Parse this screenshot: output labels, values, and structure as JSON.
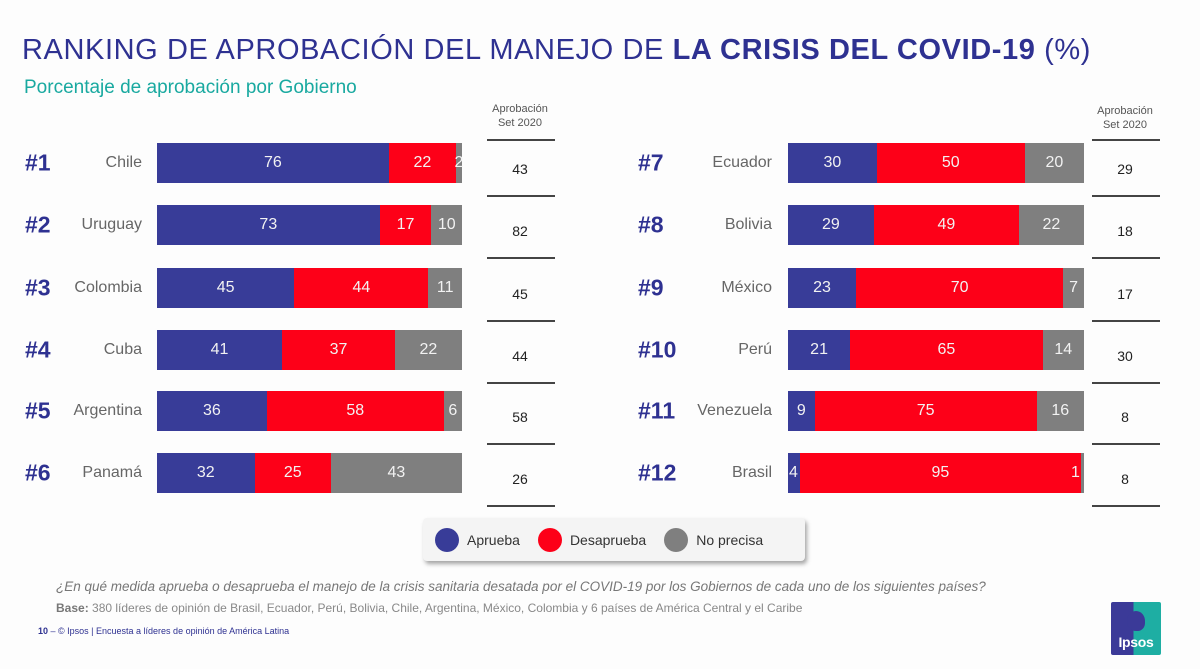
{
  "header": {
    "title_normal": "RANKING DE APROBACIÓN DEL MANEJO DE ",
    "title_bold": "LA CRISIS DEL COVID-19",
    "title_suffix": " (%)",
    "subtitle": "Porcentaje de aprobación por Gobierno"
  },
  "column_header": {
    "line1": "Aprobación",
    "line2": "Set 2020"
  },
  "colors": {
    "approve": "#383c98",
    "disapprove": "#fd0018",
    "unsure": "#7f7f7f",
    "title": "#2e3191",
    "subtitle": "#19a9a0"
  },
  "chart_data": {
    "type": "bar",
    "orientation": "horizontal",
    "stacked": true,
    "title": "RANKING DE APROBACIÓN DEL MANEJO DE LA CRISIS DEL COVID-19 (%)",
    "subtitle": "Porcentaje de aprobación por Gobierno",
    "xlim": [
      0,
      100
    ],
    "legend_position": "bottom-center",
    "categories": [
      "Chile",
      "Uruguay",
      "Colombia",
      "Cuba",
      "Argentina",
      "Panamá",
      "Ecuador",
      "Bolivia",
      "México",
      "Perú",
      "Venezuela",
      "Brasil"
    ],
    "ranks": [
      "#1",
      "#2",
      "#3",
      "#4",
      "#5",
      "#6",
      "#7",
      "#8",
      "#9",
      "#10",
      "#11",
      "#12"
    ],
    "series": [
      {
        "name": "Aprueba",
        "values": [
          76,
          73,
          45,
          41,
          36,
          32,
          30,
          29,
          23,
          21,
          9,
          4
        ]
      },
      {
        "name": "Desaprueba",
        "values": [
          22,
          17,
          44,
          37,
          58,
          25,
          50,
          49,
          70,
          65,
          75,
          95
        ]
      },
      {
        "name": "No precisa",
        "values": [
          2,
          10,
          11,
          22,
          6,
          43,
          20,
          22,
          7,
          14,
          16,
          1
        ]
      }
    ],
    "side_column": {
      "label": "Aprobación Set 2020",
      "values": [
        43,
        82,
        45,
        44,
        58,
        26,
        29,
        18,
        17,
        30,
        8,
        8
      ]
    }
  },
  "legend": [
    {
      "label": "Aprueba",
      "color": "#383c98"
    },
    {
      "label": "Desaprueba",
      "color": "#fd0018"
    },
    {
      "label": "No precisa",
      "color": "#7f7f7f"
    }
  ],
  "notes": {
    "question": "¿En qué medida aprueba o desaprueba el manejo de la crisis sanitaria desatada por el COVID-19 por los Gobiernos de cada uno de los siguientes países?",
    "base_label": "Base:",
    "base_text": " 380 líderes de opinión de Brasil, Ecuador, Perú, Bolivia, Chile, Argentina, México, Colombia y 6 países de América Central y el Caribe"
  },
  "footer": {
    "page_number": "10",
    "separator": " –  ",
    "text": "© Ipsos | Encuesta a líderes de opinión de América Latina"
  },
  "logo": {
    "text": "Ipsos"
  }
}
